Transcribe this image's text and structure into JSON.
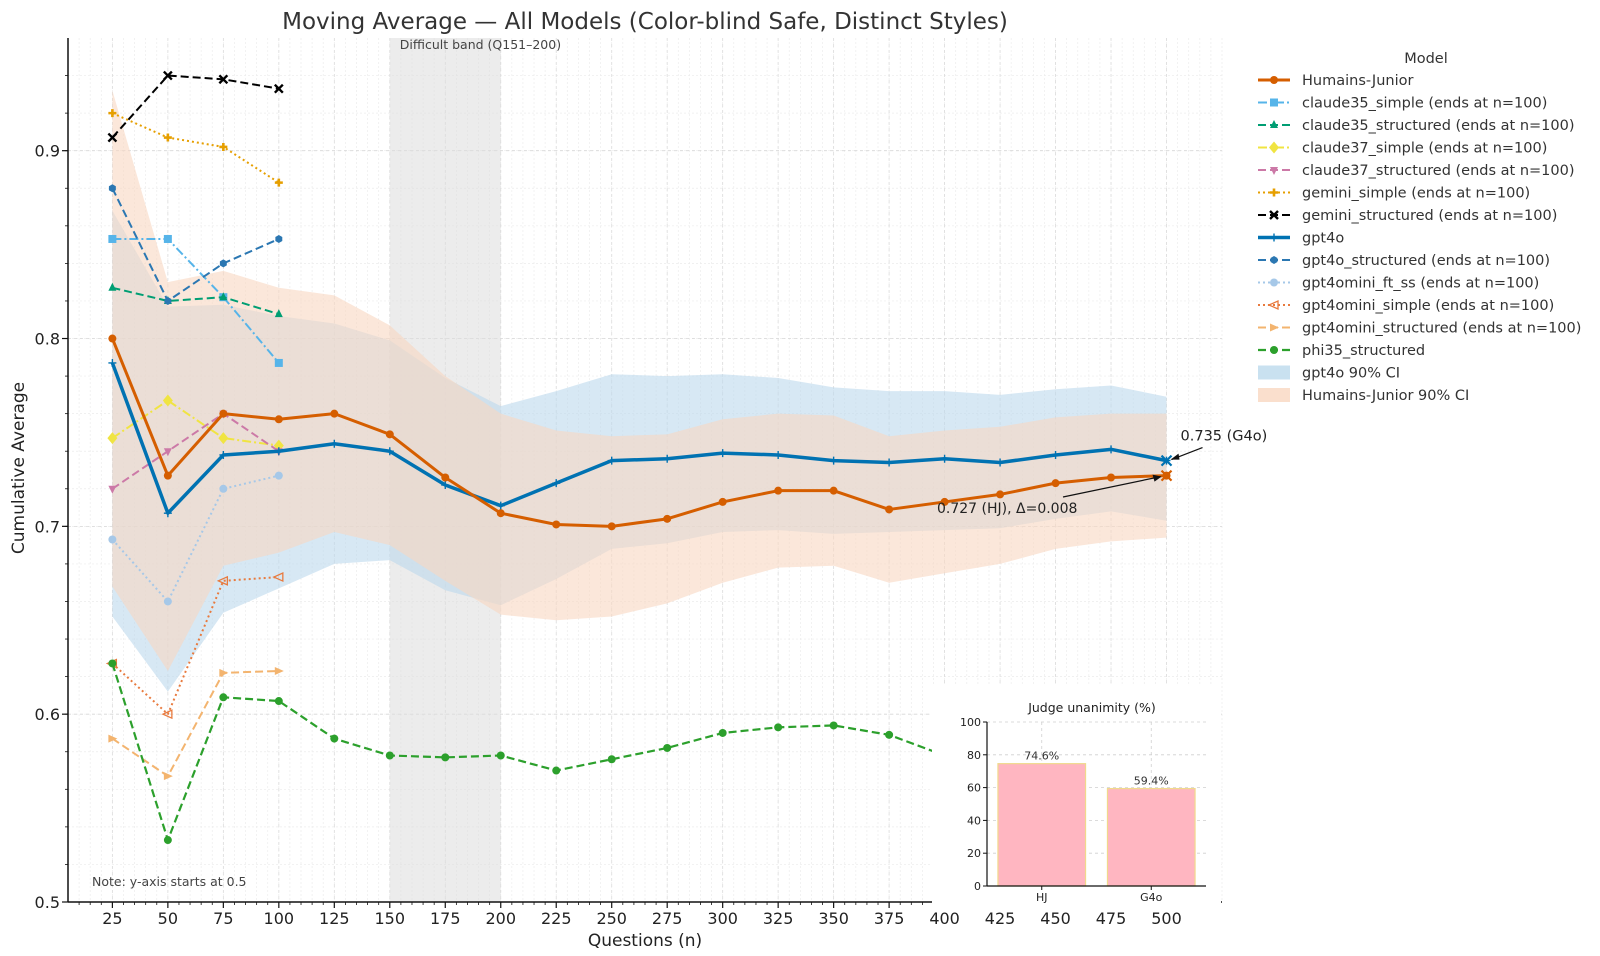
{
  "chart_data": {
    "type": "line",
    "title": "Moving Average — All Models (Color-blind Safe, Distinct Styles)",
    "xlabel": "Questions (n)",
    "ylabel": "Cumulative Average",
    "x_ticks": [
      25,
      50,
      75,
      100,
      125,
      150,
      175,
      200,
      225,
      250,
      275,
      300,
      325,
      350,
      375,
      400,
      425,
      450,
      475,
      500
    ],
    "y_ticks": [
      0.5,
      0.6,
      0.7,
      0.8,
      0.9
    ],
    "y_tick_labels": [
      "0.5",
      "0.6",
      "0.7",
      "0.8",
      "0.9"
    ],
    "xlim": [
      5,
      525
    ],
    "ylim": [
      0.5,
      0.96
    ],
    "grid": true,
    "band": {
      "x_start": 150,
      "x_end": 200,
      "label": "Difficult band (Q151–200)",
      "color": "#dddddd"
    },
    "note": "Note: y-axis starts at 0.5",
    "legend": {
      "title": "Model",
      "position": "outside-right"
    },
    "ci_bands": [
      {
        "name": "gpt4o 90% CI",
        "color": "#bcd9ec",
        "x": [
          25,
          50,
          75,
          100,
          125,
          150,
          175,
          200,
          225,
          250,
          275,
          300,
          325,
          350,
          375,
          400,
          425,
          450,
          475,
          500
        ],
        "lower": [
          0.652,
          0.612,
          0.654,
          0.667,
          0.68,
          0.682,
          0.666,
          0.658,
          0.672,
          0.688,
          0.691,
          0.697,
          0.698,
          0.696,
          0.697,
          0.698,
          0.699,
          0.704,
          0.708,
          0.703
        ],
        "upper": [
          0.868,
          0.817,
          0.818,
          0.812,
          0.808,
          0.799,
          0.779,
          0.764,
          0.772,
          0.781,
          0.78,
          0.781,
          0.779,
          0.774,
          0.772,
          0.772,
          0.77,
          0.773,
          0.775,
          0.769
        ]
      },
      {
        "name": "Humains-Junior 90% CI",
        "color": "#f9d7c1",
        "x": [
          25,
          50,
          75,
          100,
          125,
          150,
          175,
          200,
          225,
          250,
          275,
          300,
          325,
          350,
          375,
          400,
          425,
          450,
          475,
          500
        ],
        "lower": [
          0.668,
          0.623,
          0.679,
          0.686,
          0.697,
          0.69,
          0.671,
          0.653,
          0.65,
          0.652,
          0.659,
          0.67,
          0.678,
          0.679,
          0.67,
          0.675,
          0.68,
          0.688,
          0.692,
          0.694
        ],
        "upper": [
          0.932,
          0.83,
          0.836,
          0.827,
          0.823,
          0.807,
          0.78,
          0.76,
          0.751,
          0.748,
          0.749,
          0.757,
          0.76,
          0.759,
          0.748,
          0.751,
          0.753,
          0.758,
          0.76,
          0.76
        ]
      }
    ],
    "series": [
      {
        "name": "Humains-Junior",
        "color": "#d55e00",
        "style": "solid",
        "width": 3,
        "marker": "circle",
        "x": [
          25,
          50,
          75,
          100,
          125,
          150,
          175,
          200,
          225,
          250,
          275,
          300,
          325,
          350,
          375,
          400,
          425,
          450,
          475,
          500
        ],
        "values": [
          0.8,
          0.727,
          0.76,
          0.757,
          0.76,
          0.749,
          0.726,
          0.707,
          0.701,
          0.7,
          0.704,
          0.713,
          0.719,
          0.719,
          0.709,
          0.713,
          0.717,
          0.723,
          0.726,
          0.727
        ]
      },
      {
        "name": "claude35_simple (ends at n=100)",
        "color": "#56b4e9",
        "style": "dashdot",
        "width": 2,
        "marker": "square",
        "x": [
          25,
          50,
          75,
          100
        ],
        "values": [
          0.853,
          0.853,
          0.822,
          0.787
        ]
      },
      {
        "name": "claude35_structured (ends at n=100)",
        "color": "#009e73",
        "style": "dashed",
        "width": 2,
        "marker": "triangle",
        "x": [
          25,
          50,
          75,
          100
        ],
        "values": [
          0.827,
          0.82,
          0.822,
          0.813
        ]
      },
      {
        "name": "claude37_simple (ends at n=100)",
        "color": "#f0e442",
        "style": "dashdot",
        "width": 2,
        "marker": "diamond",
        "x": [
          25,
          50,
          75,
          100
        ],
        "values": [
          0.747,
          0.767,
          0.747,
          0.743
        ]
      },
      {
        "name": "claude37_structured (ends at n=100)",
        "color": "#cc79a7",
        "style": "dashed",
        "width": 2,
        "marker": "triangle-down",
        "x": [
          25,
          50,
          75,
          100
        ],
        "values": [
          0.72,
          0.74,
          0.76,
          0.74
        ]
      },
      {
        "name": "gemini_simple (ends at n=100)",
        "color": "#e69f00",
        "style": "dotted",
        "width": 2,
        "marker": "plus",
        "x": [
          25,
          50,
          75,
          100
        ],
        "values": [
          0.92,
          0.907,
          0.902,
          0.883
        ]
      },
      {
        "name": "gemini_structured (ends at n=100)",
        "color": "#000000",
        "style": "dashed",
        "width": 2,
        "marker": "x",
        "x": [
          25,
          50,
          75,
          100
        ],
        "values": [
          0.907,
          0.94,
          0.938,
          0.933
        ]
      },
      {
        "name": "gpt4o",
        "color": "#0072b2",
        "style": "solid",
        "width": 3.5,
        "marker": "star",
        "x": [
          25,
          50,
          75,
          100,
          125,
          150,
          175,
          200,
          225,
          250,
          275,
          300,
          325,
          350,
          375,
          400,
          425,
          450,
          475,
          500
        ],
        "values": [
          0.787,
          0.707,
          0.738,
          0.74,
          0.744,
          0.74,
          0.722,
          0.711,
          0.723,
          0.735,
          0.736,
          0.739,
          0.738,
          0.735,
          0.734,
          0.736,
          0.734,
          0.738,
          0.741,
          0.735
        ]
      },
      {
        "name": "gpt4o_structured (ends at n=100)",
        "color": "#2b77b2",
        "style": "dashed",
        "width": 2,
        "marker": "hexagon",
        "x": [
          25,
          50,
          75,
          100
        ],
        "values": [
          0.88,
          0.82,
          0.84,
          0.853
        ]
      },
      {
        "name": "gpt4omini_ft_ss (ends at n=100)",
        "color": "#a6c8e8",
        "style": "dotted",
        "width": 2,
        "marker": "circle",
        "x": [
          25,
          50,
          75,
          100
        ],
        "values": [
          0.693,
          0.66,
          0.72,
          0.727
        ]
      },
      {
        "name": "gpt4omini_simple (ends at n=100)",
        "color": "#e87a3e",
        "style": "dotted",
        "width": 2,
        "marker": "triangle-left",
        "x": [
          25,
          50,
          75,
          100
        ],
        "values": [
          0.627,
          0.6,
          0.671,
          0.673
        ]
      },
      {
        "name": "gpt4omini_structured (ends at n=100)",
        "color": "#f3b46f",
        "style": "dashed",
        "width": 2,
        "marker": "triangle-right",
        "x": [
          25,
          50,
          75,
          100
        ],
        "values": [
          0.587,
          0.567,
          0.622,
          0.623
        ]
      },
      {
        "name": "phi35_structured",
        "color": "#2ca02c",
        "style": "dashed",
        "width": 2.2,
        "marker": "circle",
        "x": [
          25,
          50,
          75,
          100,
          125,
          150,
          175,
          200,
          225,
          250,
          275,
          300,
          325,
          350,
          375,
          400
        ],
        "values": [
          0.627,
          0.533,
          0.609,
          0.607,
          0.587,
          0.578,
          0.577,
          0.578,
          0.57,
          0.576,
          0.582,
          0.59,
          0.593,
          0.594,
          0.589,
          0.578
        ]
      }
    ],
    "annotations": [
      {
        "text": "0.735 (G4o)",
        "x": 500,
        "y": 0.735,
        "color": "#0072b2"
      },
      {
        "text": "0.727 (HJ), Δ=0.008",
        "x": 500,
        "y": 0.727,
        "color": "#d55e00"
      }
    ],
    "inset": {
      "title": "Judge unanimity (%)",
      "type": "bar",
      "categories": [
        "HJ",
        "G4o"
      ],
      "values": [
        74.6,
        59.4
      ],
      "value_labels": [
        "74.6%",
        "59.4%"
      ],
      "ylim": [
        0,
        100
      ],
      "y_ticks": [
        0,
        20,
        40,
        60,
        80,
        100
      ],
      "bar_color": "#ffb6c1",
      "edge_color": "#f0d98c"
    }
  }
}
